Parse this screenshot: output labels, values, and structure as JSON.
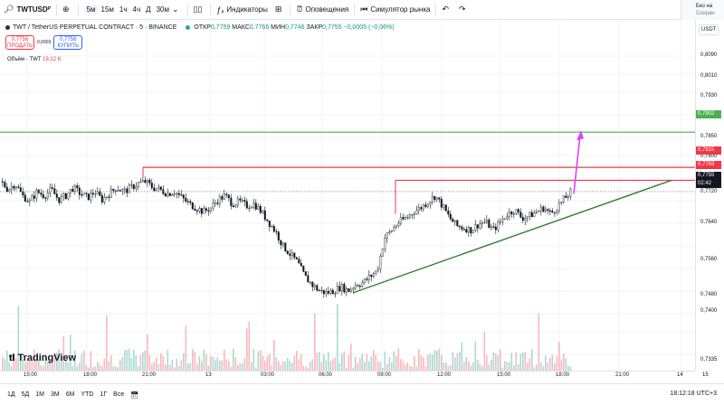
{
  "toolbar": {
    "symbol": "TWTUSDᴾ",
    "intervals": [
      "5м",
      "15м",
      "1ч",
      "4ч",
      "Д",
      "30м"
    ],
    "active_interval": "5м",
    "indicators_label": "Индикаторы",
    "alerts_label": "Оповещения",
    "replay_label": "Симулятор рынка",
    "right_title": "Без на",
    "right_sub": "Сохран"
  },
  "legend": {
    "title": "TWT / TetherUS PERPETUAL CONTRACT · 5 · BINANCE",
    "open_label": "ОТКР",
    "open": "0,7759",
    "high_label": "МАКС",
    "high": "0,7766",
    "low_label": "МИН",
    "low": "0,7746",
    "close_label": "ЗАКР",
    "close": "0,7755",
    "change": "−0,0005 (−0,06%)"
  },
  "trade": {
    "sell_price": "0,7756",
    "sell_label": "ПРОДАТЬ",
    "spread": "0,0003",
    "buy_price": "0,7758",
    "buy_label": "КУПИТЬ"
  },
  "volume": {
    "label": "Объём · TWT",
    "value": "19,12 K"
  },
  "currency": "USDT",
  "logo_text": "TradingView",
  "price_axis": {
    "labels": [
      "0,8090",
      "0,8010",
      "0,7930",
      "0,7850",
      "0,7800",
      "0,7720",
      "0,7640",
      "0,7560",
      "0,7480",
      "0,7400",
      "0,7335"
    ],
    "tags": {
      "green": "0,7902",
      "red_top": "0,7815",
      "red_mid": "0,7783",
      "current": "0,7755",
      "countdown": "02:42"
    }
  },
  "time_axis": {
    "labels": [
      "15:00",
      "18:00",
      "21:00",
      "13",
      "03:00",
      "06:00",
      "09:00",
      "12:00",
      "15:00",
      "18:00",
      "21:00",
      "14",
      "15"
    ]
  },
  "bottom": {
    "ranges": [
      "1Д",
      "5Д",
      "1М",
      "3М",
      "6М",
      "YTD",
      "1Г",
      "Все"
    ],
    "clock": "18:12:18 UTC+3"
  },
  "colors": {
    "up": "#089981",
    "down": "#f23645",
    "green_level": "#4caf50",
    "red_level": "#f23645",
    "trendline": "#2e7d32",
    "arrow": "#e040fb"
  },
  "chart_data": {
    "type": "candlestick",
    "symbol": "TWT / TetherUS PERPETUAL CONTRACT",
    "timeframe": "5",
    "exchange": "BINANCE",
    "price_range": [
      0.7335,
      0.809
    ],
    "levels": [
      0.7902,
      0.7815,
      0.7783
    ],
    "current_price": 0.7755,
    "trendline": {
      "from": {
        "time": "06:30",
        "price": 0.7505
      },
      "to": {
        "time": "19:30",
        "price": 0.7783
      }
    },
    "arrow": {
      "from_price": 0.7755,
      "to_price": 0.7902
    },
    "path": [
      [
        0,
        0.778
      ],
      [
        8,
        0.776
      ],
      [
        16,
        0.7775
      ],
      [
        24,
        0.7745
      ],
      [
        32,
        0.773
      ],
      [
        40,
        0.7755
      ],
      [
        48,
        0.7745
      ],
      [
        56,
        0.776
      ],
      [
        64,
        0.7735
      ],
      [
        72,
        0.7745
      ],
      [
        80,
        0.7765
      ],
      [
        88,
        0.775
      ],
      [
        96,
        0.774
      ],
      [
        104,
        0.7755
      ],
      [
        112,
        0.7735
      ],
      [
        120,
        0.775
      ],
      [
        128,
        0.7765
      ],
      [
        136,
        0.7755
      ],
      [
        144,
        0.7765
      ],
      [
        152,
        0.7775
      ],
      [
        160,
        0.778
      ],
      [
        168,
        0.7765
      ],
      [
        176,
        0.776
      ],
      [
        184,
        0.775
      ],
      [
        192,
        0.7755
      ],
      [
        200,
        0.774
      ],
      [
        208,
        0.7725
      ],
      [
        216,
        0.7715
      ],
      [
        224,
        0.7705
      ],
      [
        232,
        0.7715
      ],
      [
        240,
        0.7735
      ],
      [
        248,
        0.7745
      ],
      [
        256,
        0.7725
      ],
      [
        264,
        0.773
      ],
      [
        272,
        0.772
      ],
      [
        280,
        0.7725
      ],
      [
        288,
        0.7705
      ],
      [
        296,
        0.768
      ],
      [
        304,
        0.7655
      ],
      [
        312,
        0.762
      ],
      [
        320,
        0.76
      ],
      [
        328,
        0.758
      ],
      [
        336,
        0.7545
      ],
      [
        344,
        0.7525
      ],
      [
        352,
        0.751
      ],
      [
        360,
        0.7505
      ],
      [
        368,
        0.751
      ],
      [
        376,
        0.752
      ],
      [
        384,
        0.751
      ],
      [
        392,
        0.7525
      ],
      [
        400,
        0.753
      ],
      [
        408,
        0.7545
      ],
      [
        416,
        0.756
      ],
      [
        424,
        0.764
      ],
      [
        432,
        0.766
      ],
      [
        440,
        0.768
      ],
      [
        448,
        0.769
      ],
      [
        456,
        0.7705
      ],
      [
        464,
        0.7715
      ],
      [
        472,
        0.773
      ],
      [
        480,
        0.7745
      ],
      [
        488,
        0.772
      ],
      [
        496,
        0.769
      ],
      [
        504,
        0.767
      ],
      [
        512,
        0.7665
      ],
      [
        520,
        0.766
      ],
      [
        528,
        0.7675
      ],
      [
        536,
        0.768
      ],
      [
        544,
        0.766
      ],
      [
        552,
        0.768
      ],
      [
        560,
        0.77
      ],
      [
        568,
        0.771
      ],
      [
        576,
        0.769
      ],
      [
        584,
        0.7695
      ],
      [
        592,
        0.7705
      ],
      [
        600,
        0.7715
      ],
      [
        608,
        0.77
      ],
      [
        616,
        0.772
      ],
      [
        624,
        0.774
      ],
      [
        630,
        0.7755
      ]
    ]
  }
}
